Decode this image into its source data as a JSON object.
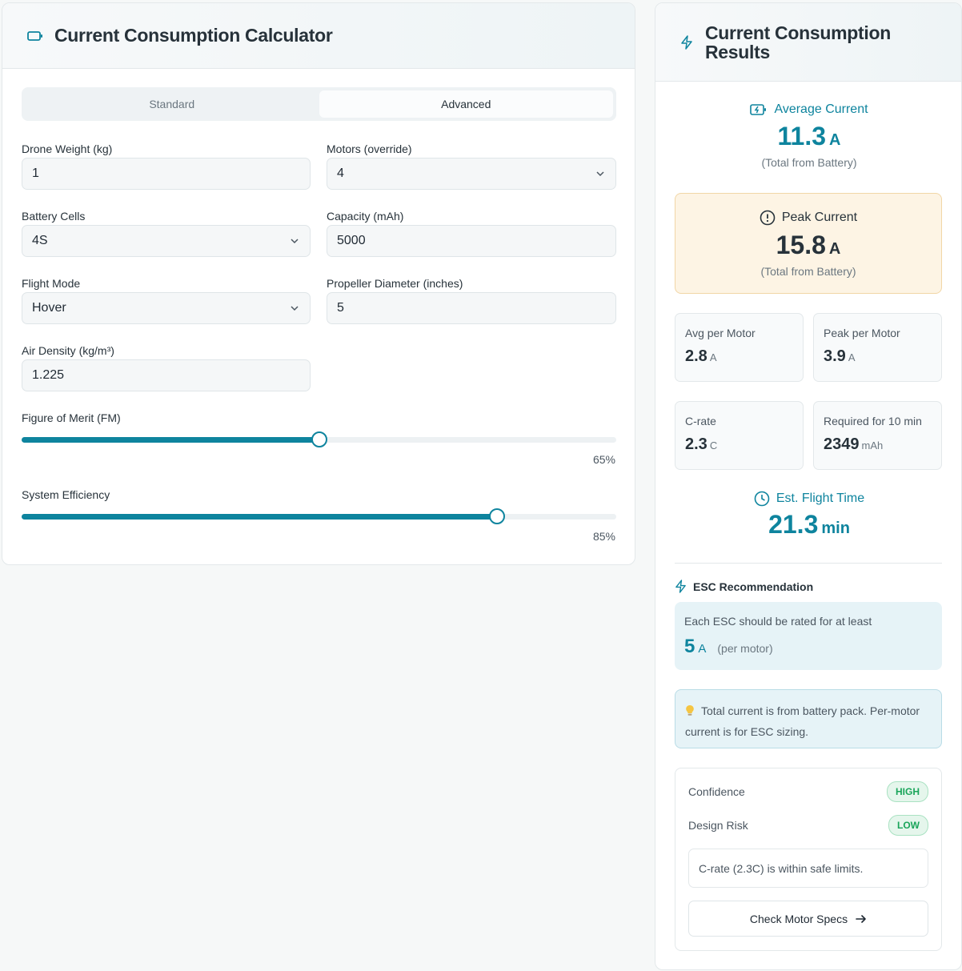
{
  "calculator": {
    "title": "Current Consumption Calculator",
    "tabs": [
      {
        "label": "Standard",
        "active": false
      },
      {
        "label": "Advanced",
        "active": true
      }
    ],
    "fields": {
      "drone_weight": {
        "label": "Drone Weight (kg)",
        "value": "1"
      },
      "motors": {
        "label": "Motors (override)",
        "value": "4"
      },
      "battery_cells": {
        "label": "Battery Cells",
        "value": "4S"
      },
      "capacity": {
        "label": "Capacity (mAh)",
        "value": "5000"
      },
      "flight_mode": {
        "label": "Flight Mode",
        "value": "Hover"
      },
      "propeller_diameter": {
        "label": "Propeller Diameter (inches)",
        "value": "5"
      },
      "air_density": {
        "label": "Air Density (kg/m³)",
        "value": "1.225"
      }
    },
    "sliders": {
      "figure_of_merit": {
        "label": "Figure of Merit (FM)",
        "value": 65,
        "display": "65%"
      },
      "system_efficiency": {
        "label": "System Efficiency",
        "value": 85,
        "display": "85%"
      }
    }
  },
  "results": {
    "title": "Current Consumption Results",
    "average": {
      "label": "Average Current",
      "value": "11.3",
      "unit": "A",
      "note": "(Total from Battery)"
    },
    "peak": {
      "label": "Peak Current",
      "value": "15.8",
      "unit": "A",
      "note": "(Total from Battery)"
    },
    "cards": {
      "avg_per_motor": {
        "label": "Avg per Motor",
        "value": "2.8",
        "unit": "A"
      },
      "peak_per_motor": {
        "label": "Peak per Motor",
        "value": "3.9",
        "unit": "A"
      },
      "c_rate": {
        "label": "C-rate",
        "value": "2.3",
        "unit": "C"
      },
      "required": {
        "label": "Required for 10 min",
        "value": "2349",
        "unit": "mAh"
      }
    },
    "flight_time": {
      "label": "Est. Flight Time",
      "value": "21.3",
      "unit": "min"
    },
    "esc": {
      "heading": "ESC Recommendation",
      "text": "Each ESC should be rated for at least",
      "value": "5",
      "unit": "A",
      "note": "(per motor)"
    },
    "tip": "Total current is from battery pack. Per-motor current is for ESC sizing.",
    "confidence": {
      "label": "Confidence",
      "badge": "HIGH"
    },
    "design_risk": {
      "label": "Design Risk",
      "badge": "LOW"
    },
    "safety_note": "C-rate (2.3C) is within safe limits.",
    "button_label": "Check Motor Specs"
  },
  "colors": {
    "accent": "#0e849e",
    "warning_bg": "#fdf4e4",
    "success": "#1aa55a"
  },
  "icons": [
    "battery-icon",
    "bolt-icon",
    "battery-charging-icon",
    "alert-circle-icon",
    "clock-icon",
    "lightbulb-icon",
    "arrow-right-icon",
    "chevron-down-icon"
  ]
}
